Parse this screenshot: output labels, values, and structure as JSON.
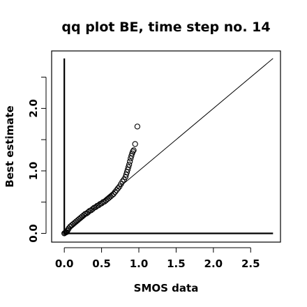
{
  "chart_data": {
    "type": "scatter",
    "title": "qq plot BE, time step no. 14",
    "xlabel": "SMOS data",
    "ylabel": "Best estimate",
    "xlim": [
      -0.17,
      2.9
    ],
    "ylim": [
      -0.14,
      2.92
    ],
    "x_ticks": [
      {
        "value": 0.0,
        "label": "0.0"
      },
      {
        "value": 0.5,
        "label": "0.5"
      },
      {
        "value": 1.0,
        "label": "1.0"
      },
      {
        "value": 1.5,
        "label": "1.5"
      },
      {
        "value": 2.0,
        "label": "2.0"
      },
      {
        "value": 2.5,
        "label": "2.5"
      }
    ],
    "y_ticks": [
      {
        "value": 0.0,
        "label": "0.0"
      },
      {
        "value": 0.5,
        "label": ""
      },
      {
        "value": 1.0,
        "label": "1.0"
      },
      {
        "value": 1.5,
        "label": ""
      },
      {
        "value": 2.0,
        "label": "2.0"
      },
      {
        "value": 2.5,
        "label": ""
      }
    ],
    "reference_line": {
      "from": [
        0,
        0
      ],
      "to": [
        2.8,
        2.8
      ]
    },
    "zero_lines": {
      "vertical_x": 0.0,
      "vertical_y_range": [
        0,
        2.8
      ],
      "horizontal_y": 0.0,
      "horizontal_x_range": [
        0,
        2.8
      ]
    },
    "series": [
      {
        "points": [
          [
            0.0,
            0.0
          ],
          [
            0.01,
            0.01
          ],
          [
            0.02,
            0.02
          ],
          [
            0.03,
            0.02
          ],
          [
            0.04,
            0.04
          ],
          [
            0.05,
            0.06
          ],
          [
            0.06,
            0.08
          ],
          [
            0.08,
            0.11
          ],
          [
            0.1,
            0.13
          ],
          [
            0.12,
            0.15
          ],
          [
            0.14,
            0.17
          ],
          [
            0.16,
            0.19
          ],
          [
            0.18,
            0.21
          ],
          [
            0.2,
            0.23
          ],
          [
            0.22,
            0.25
          ],
          [
            0.24,
            0.27
          ],
          [
            0.26,
            0.29
          ],
          [
            0.28,
            0.31
          ],
          [
            0.3,
            0.32
          ],
          [
            0.32,
            0.34
          ],
          [
            0.34,
            0.36
          ],
          [
            0.36,
            0.37
          ],
          [
            0.38,
            0.39
          ],
          [
            0.4,
            0.41
          ],
          [
            0.42,
            0.42
          ],
          [
            0.44,
            0.44
          ],
          [
            0.46,
            0.45
          ],
          [
            0.48,
            0.47
          ],
          [
            0.5,
            0.48
          ],
          [
            0.52,
            0.5
          ],
          [
            0.54,
            0.51
          ],
          [
            0.56,
            0.53
          ],
          [
            0.58,
            0.55
          ],
          [
            0.6,
            0.57
          ],
          [
            0.62,
            0.59
          ],
          [
            0.64,
            0.61
          ],
          [
            0.66,
            0.63
          ],
          [
            0.68,
            0.66
          ],
          [
            0.7,
            0.69
          ],
          [
            0.72,
            0.72
          ],
          [
            0.74,
            0.75
          ],
          [
            0.76,
            0.79
          ],
          [
            0.78,
            0.83
          ],
          [
            0.8,
            0.86
          ],
          [
            0.82,
            0.9
          ],
          [
            0.83,
            0.94
          ],
          [
            0.84,
            0.98
          ],
          [
            0.85,
            1.02
          ],
          [
            0.86,
            1.06
          ],
          [
            0.87,
            1.1
          ],
          [
            0.88,
            1.15
          ],
          [
            0.89,
            1.2
          ],
          [
            0.9,
            1.24
          ],
          [
            0.91,
            1.28
          ],
          [
            0.92,
            1.31
          ],
          [
            0.93,
            1.33
          ],
          [
            0.95,
            1.43
          ],
          [
            0.98,
            1.71
          ]
        ]
      }
    ]
  }
}
